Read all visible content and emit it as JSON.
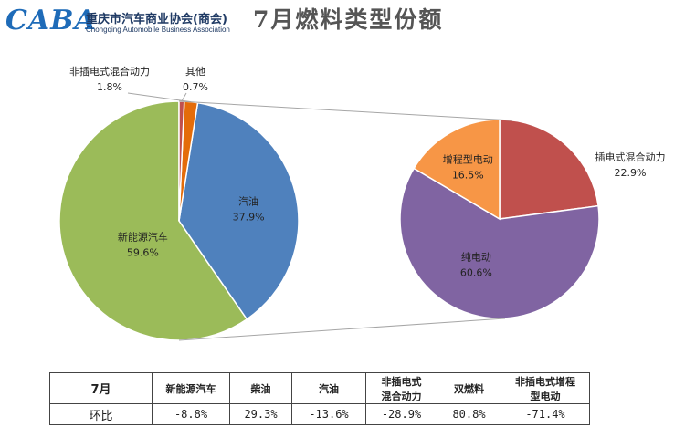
{
  "header": {
    "logo_mark": "CABA",
    "logo_name": "重庆市汽车商业协会(商会)",
    "logo_en": "Chongqing Automobile Business Association",
    "title": "7月燃料类型份额"
  },
  "chart_data": [
    {
      "type": "pie",
      "title": "",
      "slices": [
        {
          "label": "新能源汽车",
          "value": 59.6,
          "display": "59.6%",
          "color": "#9bbb59"
        },
        {
          "label": "汽油",
          "value": 37.9,
          "display": "37.9%",
          "color": "#4f81bd"
        },
        {
          "label": "非插电式混合动力",
          "value": 1.8,
          "display": "1.8%",
          "color": "#e46c0a"
        },
        {
          "label": "其他",
          "value": 0.7,
          "display": "0.7%",
          "color": "#c0504d"
        }
      ]
    },
    {
      "type": "pie",
      "title": "",
      "slices": [
        {
          "label": "插电式混合动力",
          "value": 22.9,
          "display": "22.9%",
          "color": "#c0504d"
        },
        {
          "label": "纯电动",
          "value": 60.6,
          "display": "60.6%",
          "color": "#8064a2"
        },
        {
          "label": "增程型电动",
          "value": 16.5,
          "display": "16.5%",
          "color": "#f79646"
        }
      ]
    }
  ],
  "table": {
    "headers": [
      "7月",
      "新能源汽车",
      "柴油",
      "汽油",
      "非插电式\n混合动力",
      "双燃料",
      "非插电式增程\n型电动"
    ],
    "rows": [
      {
        "label": "环比",
        "values": [
          "-8.8%",
          "29.3%",
          "-13.6%",
          "-28.9%",
          "80.8%",
          "-71.4%"
        ]
      }
    ]
  }
}
